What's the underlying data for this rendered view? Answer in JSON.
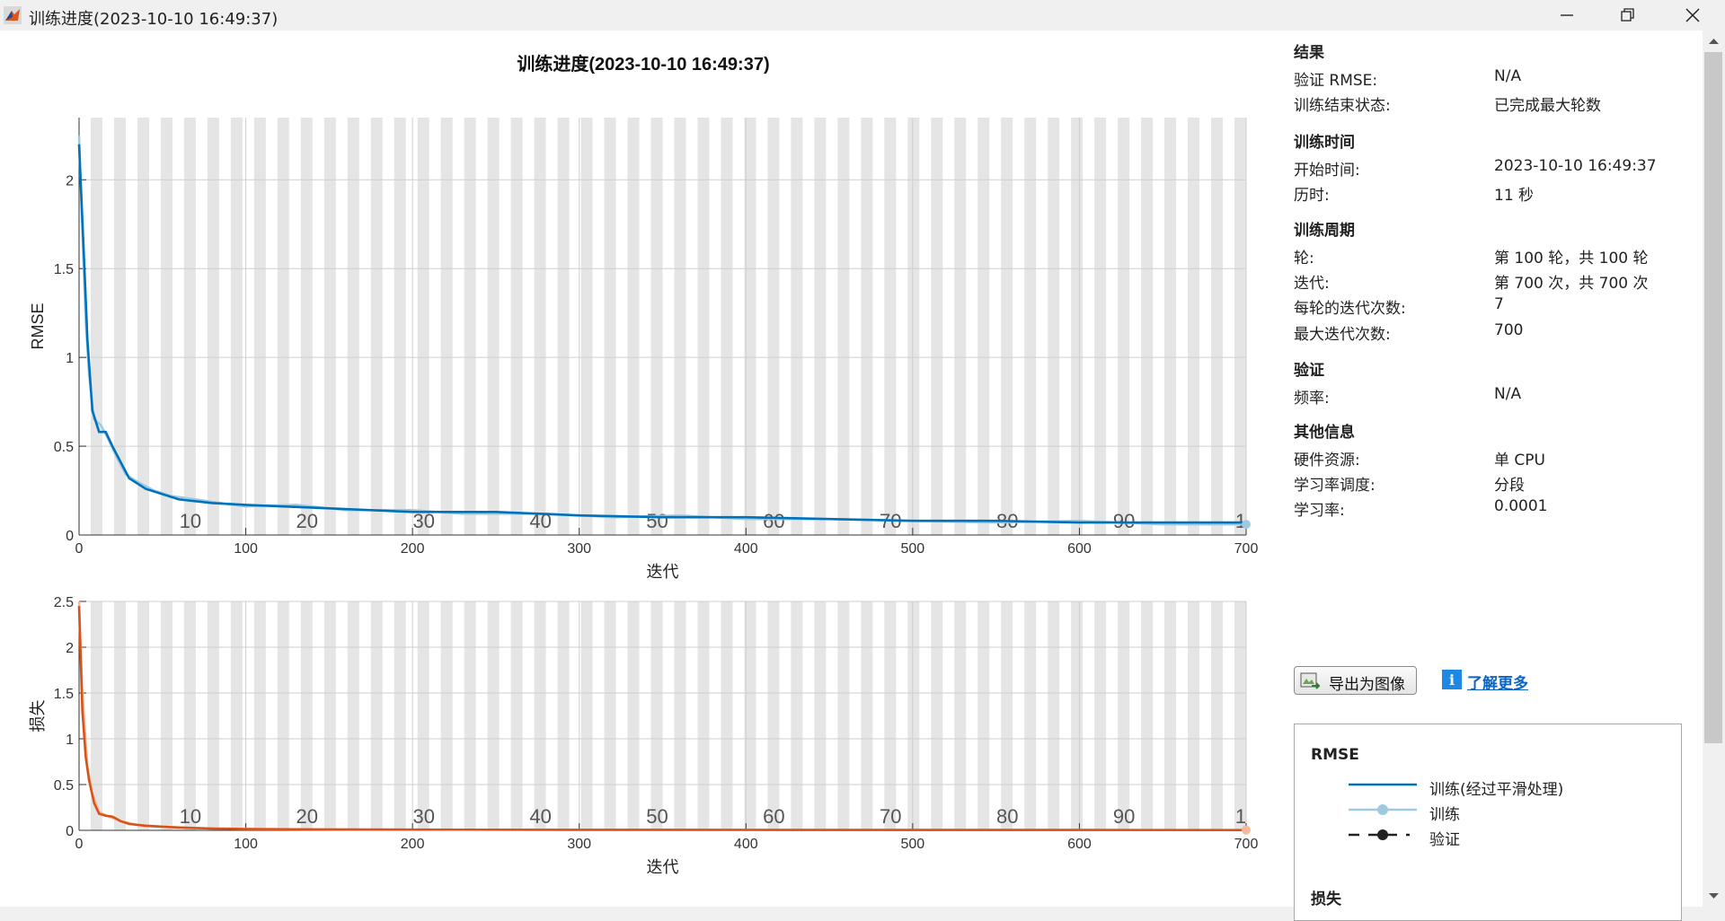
{
  "window": {
    "title": "训练进度(2023-10-10 16:49:37)",
    "controls": [
      "minimize",
      "restore",
      "close"
    ]
  },
  "colors": {
    "rmse_smoothed": "#0072bd",
    "rmse_raw": "#9ecae1",
    "loss_smoothed": "#d95319",
    "loss_raw": "#f5b89a",
    "epoch_stripe": "#e5e5e5"
  },
  "panel": {
    "results": {
      "title": "结果",
      "rows": [
        {
          "label": "验证 RMSE:",
          "value": "N/A"
        },
        {
          "label": "训练结束状态:",
          "value": "已完成最大轮数"
        }
      ]
    },
    "time": {
      "title": "训练时间",
      "rows": [
        {
          "label": "开始时间:",
          "value": "2023-10-10 16:49:37"
        },
        {
          "label": "历时:",
          "value": "11 秒"
        }
      ]
    },
    "cycle": {
      "title": "训练周期",
      "rows": [
        {
          "label": "轮:",
          "value": "第 100 轮，共 100 轮"
        },
        {
          "label": "迭代:",
          "value": "第 700 次，共 700 次"
        },
        {
          "label": "每轮的迭代次数:",
          "value": "7"
        },
        {
          "label": "最大迭代次数:",
          "value": "700"
        }
      ]
    },
    "validation": {
      "title": "验证",
      "rows": [
        {
          "label": "频率:",
          "value": "N/A"
        }
      ]
    },
    "other": {
      "title": "其他信息",
      "rows": [
        {
          "label": "硬件资源:",
          "value": "单 CPU"
        },
        {
          "label": "学习率调度:",
          "value": "分段"
        },
        {
          "label": "学习率:",
          "value": "0.0001"
        }
      ]
    },
    "export_button": "导出为图像",
    "learn_more": "了解更多",
    "legend": {
      "rmse_title": "RMSE",
      "items": [
        {
          "label": "训练(经过平滑处理)",
          "icon": "solid-line"
        },
        {
          "label": "训练",
          "icon": "line-with-dot"
        },
        {
          "label": "验证",
          "icon": "dashed-line-with-dot"
        }
      ],
      "loss_title": "损失"
    }
  },
  "chart_data": [
    {
      "type": "line",
      "title": "训练进度(2023-10-10 16:49:37)",
      "xlabel": "迭代",
      "ylabel": "RMSE",
      "xlim": [
        0,
        700
      ],
      "ylim": [
        0,
        2.35
      ],
      "xticks": [
        0,
        100,
        200,
        300,
        400,
        500,
        600,
        700
      ],
      "yticks": [
        0,
        0.5,
        1,
        1.5,
        2
      ],
      "grid": true,
      "epoch_labels": [
        "10",
        "20",
        "30",
        "40",
        "50",
        "60",
        "70",
        "80",
        "90",
        "1"
      ],
      "series": [
        {
          "name": "训练(经过平滑处理)",
          "x": [
            0,
            3,
            5,
            8,
            12,
            16,
            20,
            30,
            40,
            60,
            80,
            100,
            150,
            200,
            250,
            300,
            350,
            400,
            450,
            500,
            550,
            600,
            650,
            700
          ],
          "y": [
            2.2,
            1.55,
            1.1,
            0.7,
            0.58,
            0.58,
            0.5,
            0.32,
            0.26,
            0.2,
            0.18,
            0.17,
            0.15,
            0.13,
            0.13,
            0.11,
            0.1,
            0.1,
            0.09,
            0.08,
            0.08,
            0.07,
            0.07,
            0.07
          ]
        },
        {
          "name": "训练",
          "x": [
            0,
            2,
            4,
            6,
            9,
            13,
            17,
            22,
            28,
            35,
            45,
            55,
            70,
            85,
            100,
            130,
            160,
            200,
            230,
            280,
            320,
            360,
            400,
            450,
            500,
            550,
            600,
            650,
            700
          ],
          "y": [
            2.25,
            1.7,
            1.2,
            0.9,
            0.65,
            0.62,
            0.55,
            0.45,
            0.34,
            0.3,
            0.25,
            0.22,
            0.2,
            0.18,
            0.16,
            0.17,
            0.14,
            0.14,
            0.12,
            0.12,
            0.1,
            0.11,
            0.09,
            0.09,
            0.08,
            0.07,
            0.08,
            0.06,
            0.06
          ]
        }
      ]
    },
    {
      "type": "line",
      "title": "",
      "xlabel": "迭代",
      "ylabel": "损失",
      "xlim": [
        0,
        700
      ],
      "ylim": [
        0,
        2.5
      ],
      "xticks": [
        0,
        100,
        200,
        300,
        400,
        500,
        600,
        700
      ],
      "yticks": [
        0,
        0.5,
        1,
        1.5,
        2,
        2.5
      ],
      "grid": true,
      "epoch_labels": [
        "10",
        "20",
        "30",
        "40",
        "50",
        "60",
        "70",
        "80",
        "90",
        "1"
      ],
      "series": [
        {
          "name": "训练(经过平滑处理)",
          "x": [
            0,
            2,
            4,
            6,
            9,
            12,
            16,
            20,
            25,
            30,
            40,
            60,
            80,
            100,
            150,
            200,
            300,
            400,
            500,
            600,
            700
          ],
          "y": [
            2.45,
            1.3,
            0.8,
            0.55,
            0.3,
            0.18,
            0.16,
            0.15,
            0.1,
            0.07,
            0.05,
            0.03,
            0.02,
            0.015,
            0.01,
            0.008,
            0.006,
            0.005,
            0.004,
            0.004,
            0.003
          ]
        },
        {
          "name": "训练",
          "x": [
            0,
            2,
            5,
            8,
            12,
            18,
            25,
            35,
            50,
            80,
            120,
            200,
            300,
            400,
            500,
            600,
            700
          ],
          "y": [
            2.5,
            1.5,
            0.7,
            0.4,
            0.2,
            0.15,
            0.1,
            0.06,
            0.04,
            0.02,
            0.012,
            0.008,
            0.006,
            0.005,
            0.004,
            0.004,
            0.003
          ]
        }
      ]
    }
  ]
}
